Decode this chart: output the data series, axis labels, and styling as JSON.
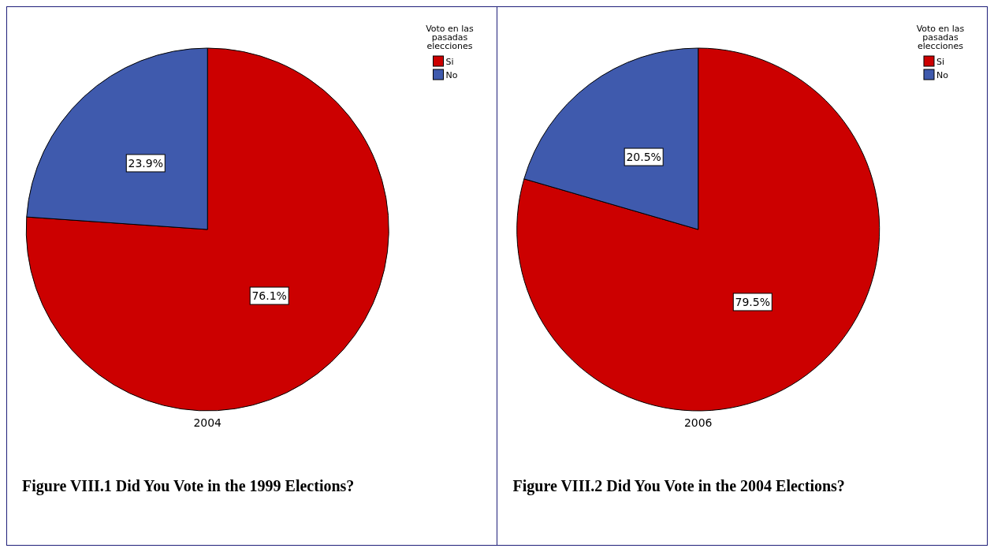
{
  "chart_data": [
    {
      "type": "pie",
      "title": "Figure VIII.1 Did You Vote in the 1999 Elections?",
      "xlabel": "2004",
      "legend_title": "Voto en las pasadas elecciones",
      "legend": "top right",
      "categories": [
        "Si",
        "No"
      ],
      "values": [
        76.1,
        23.9
      ],
      "colors": [
        "#cc0000",
        "#3f5aad"
      ],
      "value_labels": [
        "76.1%",
        "23.9%"
      ]
    },
    {
      "type": "pie",
      "title": "Figure VIII.2 Did You Vote in the 2004 Elections?",
      "xlabel": "2006",
      "legend_title": "Voto en las pasadas elecciones",
      "legend": "top right",
      "categories": [
        "Si",
        "No"
      ],
      "values": [
        79.5,
        20.5
      ],
      "colors": [
        "#cc0000",
        "#3f5aad"
      ],
      "value_labels": [
        "79.5%",
        "20.5%"
      ]
    }
  ]
}
